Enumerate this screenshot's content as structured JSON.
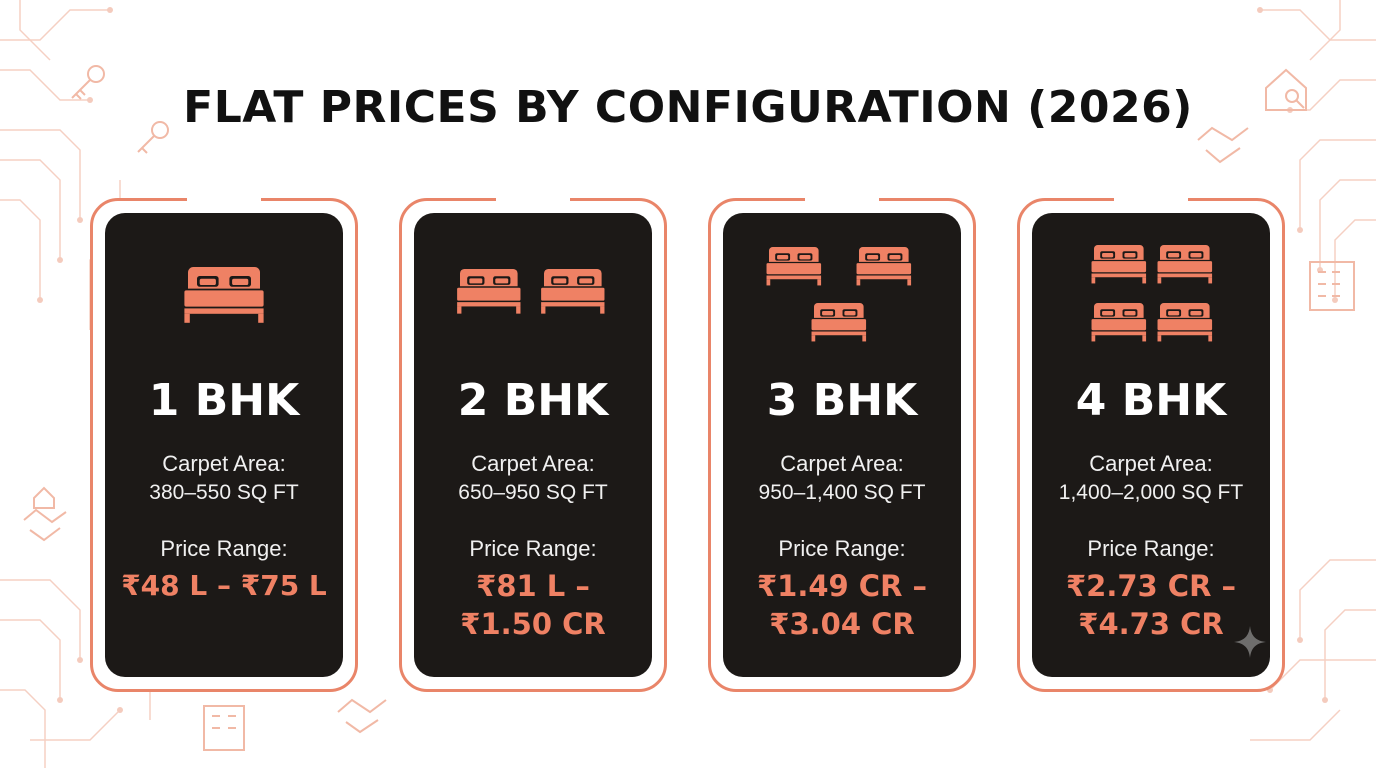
{
  "title": "FLAT PRICES BY CONFIGURATION (2026)",
  "colors": {
    "accent": "#ef8164",
    "card_bg": "#1c1917",
    "frame": "#e98569"
  },
  "cards": [
    {
      "bhk": "1 BHK",
      "bed_count": 1,
      "area_label": "Carpet Area:",
      "area_value": "380–550 SQ FT",
      "price_label": "Price Range:",
      "price_line1": "₹48 L – ₹75 L",
      "price_line2": ""
    },
    {
      "bhk": "2 BHK",
      "bed_count": 2,
      "area_label": "Carpet Area:",
      "area_value": "650–950 SQ FT",
      "price_label": "Price Range:",
      "price_line1": "₹81 L –",
      "price_line2": "₹1.50 CR"
    },
    {
      "bhk": "3 BHK",
      "bed_count": 3,
      "area_label": "Carpet Area:",
      "area_value": "950–1,400 SQ FT",
      "price_label": "Price Range:",
      "price_line1": "₹1.49 CR –",
      "price_line2": "₹3.04 CR"
    },
    {
      "bhk": "4 BHK",
      "bed_count": 4,
      "area_label": "Carpet Area:",
      "area_value": "1,400–2,000 SQ FT",
      "price_label": "Price Range:",
      "price_line1": "₹2.73 CR –",
      "price_line2": "₹4.73 CR"
    }
  ]
}
